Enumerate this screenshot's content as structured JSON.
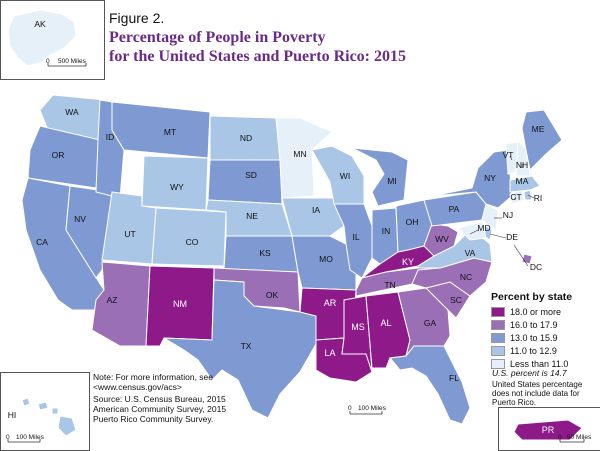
{
  "figure_label": "Figure 2.",
  "title_line1": "Percentage of People in Poverty",
  "title_line2": "for the United States and Puerto Rico: 2015",
  "colors": {
    "c18": "#8e1a8a",
    "c16": "#9b6fb6",
    "c13": "#7f9ad2",
    "c11": "#a9c6e6",
    "cLT": "#e6f0f8"
  },
  "legend": {
    "title": "Percent by state",
    "items": [
      {
        "label": "18.0 or more",
        "color": "#8e1a8a"
      },
      {
        "label": "16.0 to 17.9",
        "color": "#9b6fb6"
      },
      {
        "label": "13.0 to 15.9",
        "color": "#7f9ad2"
      },
      {
        "label": "11.0 to 12.9",
        "color": "#a9c6e6"
      },
      {
        "label": "Less than 11.0",
        "color": "#e6f0f8"
      }
    ]
  },
  "us_percent": "U.S. percent is 14.7",
  "pr_note": "United States percentage does not include data for Puerto Rico.",
  "note": "Note: For more information, see <www.census.gov/acs>",
  "source_line1": "Source: U.S. Census Bureau, 2015",
  "source_line2": "American Community Survey, 2015",
  "source_line3": "Puerto Rico Community Survey.",
  "scales": {
    "ak": {
      "zero": "0",
      "value": "500 Miles"
    },
    "main": {
      "zero": "0",
      "value": "100 Miles"
    },
    "hi": {
      "zero": "0",
      "value": "100 Miles"
    },
    "pr": {
      "zero": "0",
      "value": "50 Miles"
    }
  },
  "states": {
    "AK": "AK",
    "WA": "WA",
    "OR": "OR",
    "CA": "CA",
    "ID": "ID",
    "NV": "NV",
    "MT": "MT",
    "WY": "WY",
    "UT": "UT",
    "AZ": "AZ",
    "CO": "CO",
    "NM": "NM",
    "ND": "ND",
    "SD": "SD",
    "NE": "NE",
    "KS": "KS",
    "OK": "OK",
    "TX": "TX",
    "MN": "MN",
    "IA": "IA",
    "MO": "MO",
    "AR": "AR",
    "LA": "LA",
    "WI": "WI",
    "IL": "IL",
    "MI": "MI",
    "IN": "IN",
    "OH": "OH",
    "KY": "KY",
    "TN": "TN",
    "MS": "MS",
    "AL": "AL",
    "GA": "GA",
    "FL": "FL",
    "SC": "SC",
    "NC": "NC",
    "VA": "VA",
    "WV": "WV",
    "PA": "PA",
    "NY": "NY",
    "VT": "VT",
    "NH": "NH",
    "ME": "ME",
    "MA": "MA",
    "CT": "CT",
    "RI": "RI",
    "NJ": "NJ",
    "DE": "DE",
    "MD": "MD",
    "DC": "DC",
    "HI": "HI",
    "PR": "PR"
  }
}
